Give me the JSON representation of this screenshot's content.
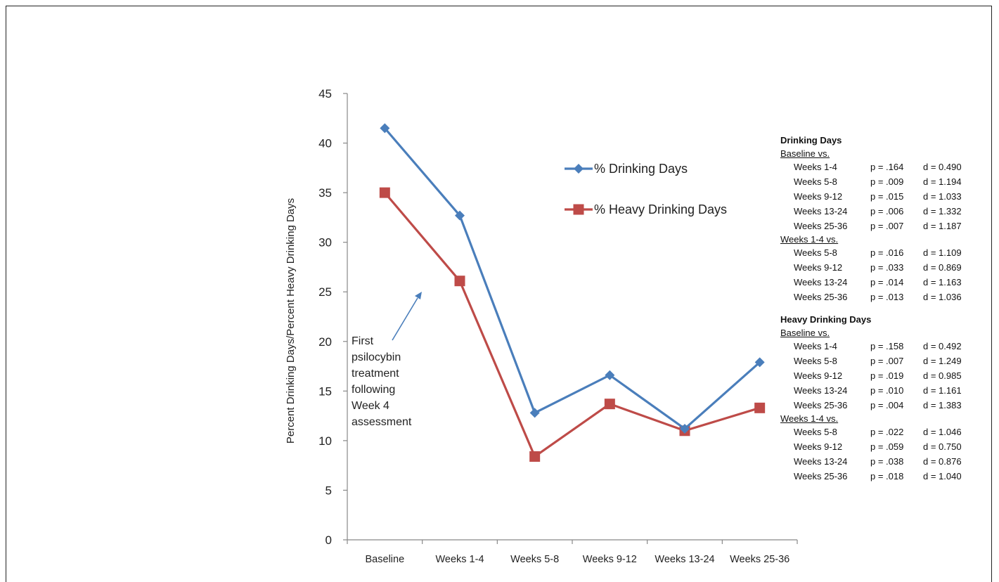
{
  "chart_data": {
    "type": "line",
    "ylabel": "Percent Drinking Days/Percent Heavy Drinking Days",
    "categories": [
      "Baseline",
      "Weeks 1-4",
      "Weeks 5-8",
      "Weeks 9-12",
      "Weeks 13-24",
      "Weeks 25-36"
    ],
    "ylim": [
      0,
      45
    ],
    "yticks": [
      0,
      5,
      10,
      15,
      20,
      25,
      30,
      35,
      40,
      45
    ],
    "grid": false,
    "legend_position": "top-center",
    "series": [
      {
        "name": "% Drinking Days",
        "color": "#4a7ebb",
        "marker": "diamond",
        "values": [
          41.5,
          32.7,
          12.8,
          16.6,
          11.2,
          17.9
        ]
      },
      {
        "name": "% Heavy Drinking Days",
        "color": "#be4b48",
        "marker": "square",
        "values": [
          35.0,
          26.1,
          8.4,
          13.7,
          11.0,
          13.3
        ]
      }
    ],
    "annotation": {
      "text_lines": [
        "First",
        "psilocybin",
        "treatment",
        "following",
        "Week 4",
        "assessment"
      ],
      "arrow_color": "#4a7ebb"
    }
  },
  "stats_panel": [
    {
      "heading": "Drinking Days",
      "groups": [
        {
          "label": "Baseline vs.",
          "rows": [
            {
              "label": "Weeks 1-4",
              "p": "p = .164",
              "d": "d = 0.490"
            },
            {
              "label": "Weeks 5-8",
              "p": "p = .009",
              "d": "d = 1.194"
            },
            {
              "label": "Weeks 9-12",
              "p": "p = .015",
              "d": "d = 1.033"
            },
            {
              "label": "Weeks 13-24",
              "p": "p = .006",
              "d": "d = 1.332"
            },
            {
              "label": "Weeks 25-36",
              "p": "p = .007",
              "d": "d = 1.187"
            }
          ]
        },
        {
          "label": "Weeks 1-4 vs.",
          "rows": [
            {
              "label": "Weeks 5-8",
              "p": "p = .016",
              "d": "d = 1.109"
            },
            {
              "label": "Weeks 9-12",
              "p": "p = .033",
              "d": "d = 0.869"
            },
            {
              "label": "Weeks 13-24",
              "p": "p = .014",
              "d": "d = 1.163"
            },
            {
              "label": "Weeks 25-36",
              "p": "p = .013",
              "d": "d = 1.036"
            }
          ]
        }
      ]
    },
    {
      "heading": "Heavy Drinking Days",
      "groups": [
        {
          "label": "Baseline vs.",
          "rows": [
            {
              "label": "Weeks 1-4",
              "p": "p = .158",
              "d": "d = 0.492"
            },
            {
              "label": "Weeks 5-8",
              "p": "p = .007",
              "d": "d = 1.249"
            },
            {
              "label": "Weeks 9-12",
              "p": "p = .019",
              "d": "d = 0.985"
            },
            {
              "label": "Weeks 13-24",
              "p": "p = .010",
              "d": "d = 1.161"
            },
            {
              "label": "Weeks 25-36",
              "p": "p = .004",
              "d": "d = 1.383"
            }
          ]
        },
        {
          "label": "Weeks 1-4 vs.",
          "rows": [
            {
              "label": "Weeks 5-8",
              "p": "p = .022",
              "d": "d = 1.046"
            },
            {
              "label": "Weeks 9-12",
              "p": "p = .059",
              "d": "d = 0.750"
            },
            {
              "label": "Weeks 13-24",
              "p": "p = .038",
              "d": "d = 0.876"
            },
            {
              "label": "Weeks 25-36",
              "p": "p = .018",
              "d": "d = 1.040"
            }
          ]
        }
      ]
    }
  ]
}
